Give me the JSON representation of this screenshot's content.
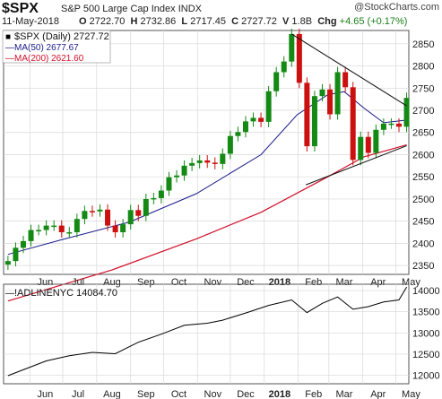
{
  "header": {
    "ticker": "$SPX",
    "company": "S&P 500 Large Cap Index",
    "exchange": "INDX",
    "date": "11-May-2018",
    "open_label": "O",
    "open": "2722.70",
    "high_label": "H",
    "high": "2732.86",
    "low_label": "L",
    "low": "2717.45",
    "close_label": "C",
    "close": "2727.72",
    "volume_label": "V",
    "volume": "1.8B",
    "change_label": "Chg",
    "change": "+4.65 (+0.17%)",
    "watermark": "@StockCharts.com",
    "change_color": "#1a7f1a"
  },
  "legend": {
    "main": "$SPX (Daily) 2727.72",
    "ma50": "MA(50) 2677.67",
    "ma200": "MA(200) 2621.60",
    "lower": "!ADLINENYC 14084.70",
    "colors": {
      "price": "#000000",
      "ma50": "#1a1a8c",
      "ma200": "#d0102a",
      "adline": "#000000",
      "candle_up": "#148a14",
      "candle_down": "#cc1010"
    }
  },
  "chart_data": [
    {
      "type": "line",
      "title": "$SPX (Daily)",
      "x_axis_labels": [
        "Jun",
        "Jul",
        "Aug",
        "Sep",
        "Oct",
        "Nov",
        "Dec",
        "2018",
        "Feb",
        "Mar",
        "Apr",
        "May"
      ],
      "y_ticks": [
        2350,
        2400,
        2450,
        2500,
        2550,
        2600,
        2650,
        2700,
        2750,
        2800,
        2850
      ],
      "ylim": [
        2330,
        2880
      ],
      "x_months": [
        "2017-05",
        "2017-06",
        "2017-07",
        "2017-08",
        "2017-09",
        "2017-10",
        "2017-11",
        "2017-12",
        "2018-01",
        "2018-02",
        "2018-03",
        "2018-04",
        "2018-05"
      ],
      "grid": true,
      "series": [
        {
          "name": "$SPX",
          "style": "candlestick",
          "x": [
            "2017-05-12",
            "2017-05-19",
            "2017-05-26",
            "2017-06-02",
            "2017-06-09",
            "2017-06-16",
            "2017-06-23",
            "2017-06-30",
            "2017-07-07",
            "2017-07-14",
            "2017-07-21",
            "2017-07-28",
            "2017-08-04",
            "2017-08-11",
            "2017-08-18",
            "2017-08-25",
            "2017-09-01",
            "2017-09-08",
            "2017-09-15",
            "2017-09-22",
            "2017-09-29",
            "2017-10-06",
            "2017-10-13",
            "2017-10-20",
            "2017-10-27",
            "2017-11-03",
            "2017-11-10",
            "2017-11-17",
            "2017-11-24",
            "2017-12-01",
            "2017-12-08",
            "2017-12-15",
            "2017-12-22",
            "2017-12-29",
            "2018-01-05",
            "2018-01-12",
            "2018-01-19",
            "2018-01-26",
            "2018-02-02",
            "2018-02-09",
            "2018-02-16",
            "2018-02-23",
            "2018-03-02",
            "2018-03-09",
            "2018-03-16",
            "2018-03-23",
            "2018-03-30",
            "2018-04-06",
            "2018-04-13",
            "2018-04-20",
            "2018-04-27",
            "2018-05-04",
            "2018-05-11"
          ],
          "values": [
            2360,
            2390,
            2405,
            2430,
            2430,
            2440,
            2440,
            2425,
            2425,
            2455,
            2473,
            2472,
            2476,
            2440,
            2425,
            2443,
            2475,
            2462,
            2500,
            2502,
            2519,
            2549,
            2553,
            2575,
            2581,
            2587,
            2582,
            2579,
            2602,
            2642,
            2651,
            2675,
            2683,
            2674,
            2743,
            2786,
            2810,
            2872,
            2762,
            2619,
            2732,
            2747,
            2691,
            2786,
            2752,
            2588,
            2640,
            2604,
            2656,
            2670,
            2670,
            2663,
            2728
          ]
        },
        {
          "name": "MA(50)",
          "x": [
            "2017-05-12",
            "2017-06-30",
            "2017-08-31",
            "2017-10-31",
            "2017-12-29",
            "2018-01-31",
            "2018-02-28",
            "2018-03-15",
            "2018-04-02",
            "2018-04-20",
            "2018-05-11"
          ],
          "values": [
            2375,
            2408,
            2448,
            2512,
            2600,
            2690,
            2735,
            2742,
            2705,
            2672,
            2678
          ]
        },
        {
          "name": "MA(200)",
          "x": [
            "2017-05-12",
            "2017-08-15",
            "2017-10-31",
            "2017-12-29",
            "2018-02-28",
            "2018-04-02",
            "2018-05-11"
          ],
          "values": [
            2270,
            2340,
            2410,
            2470,
            2550,
            2595,
            2622
          ]
        }
      ],
      "annotations": [
        {
          "type": "trendline",
          "from": [
            "2018-01-26",
            2872
          ],
          "to": [
            "2018-05-11",
            2710
          ]
        },
        {
          "type": "trendline",
          "from": [
            "2018-02-08",
            2532
          ],
          "to": [
            "2018-05-11",
            2620
          ]
        }
      ]
    },
    {
      "type": "line",
      "title": "!ADLINENYC",
      "x_axis_labels": [
        "Jun",
        "Jul",
        "Aug",
        "Sep",
        "Oct",
        "Nov",
        "Dec",
        "2018",
        "Feb",
        "Mar",
        "Apr",
        "May"
      ],
      "y_ticks": [
        12000,
        12500,
        13000,
        13500,
        14000
      ],
      "ylim": [
        11800,
        14150
      ],
      "grid": true,
      "series": [
        {
          "name": "!ADLINENYC",
          "x": [
            "2017-05-12",
            "2017-05-26",
            "2017-06-16",
            "2017-07-07",
            "2017-07-28",
            "2017-08-18",
            "2017-09-08",
            "2017-09-29",
            "2017-10-20",
            "2017-11-10",
            "2017-11-24",
            "2017-12-15",
            "2018-01-05",
            "2018-01-26",
            "2018-02-09",
            "2018-02-23",
            "2018-03-09",
            "2018-03-23",
            "2018-04-06",
            "2018-04-20",
            "2018-05-04",
            "2018-05-11"
          ],
          "values": [
            11990,
            12130,
            12340,
            12460,
            12540,
            12510,
            12780,
            12970,
            13180,
            13230,
            13300,
            13470,
            13650,
            13780,
            13480,
            13700,
            13850,
            13560,
            13620,
            13730,
            13780,
            14085
          ]
        }
      ]
    }
  ]
}
